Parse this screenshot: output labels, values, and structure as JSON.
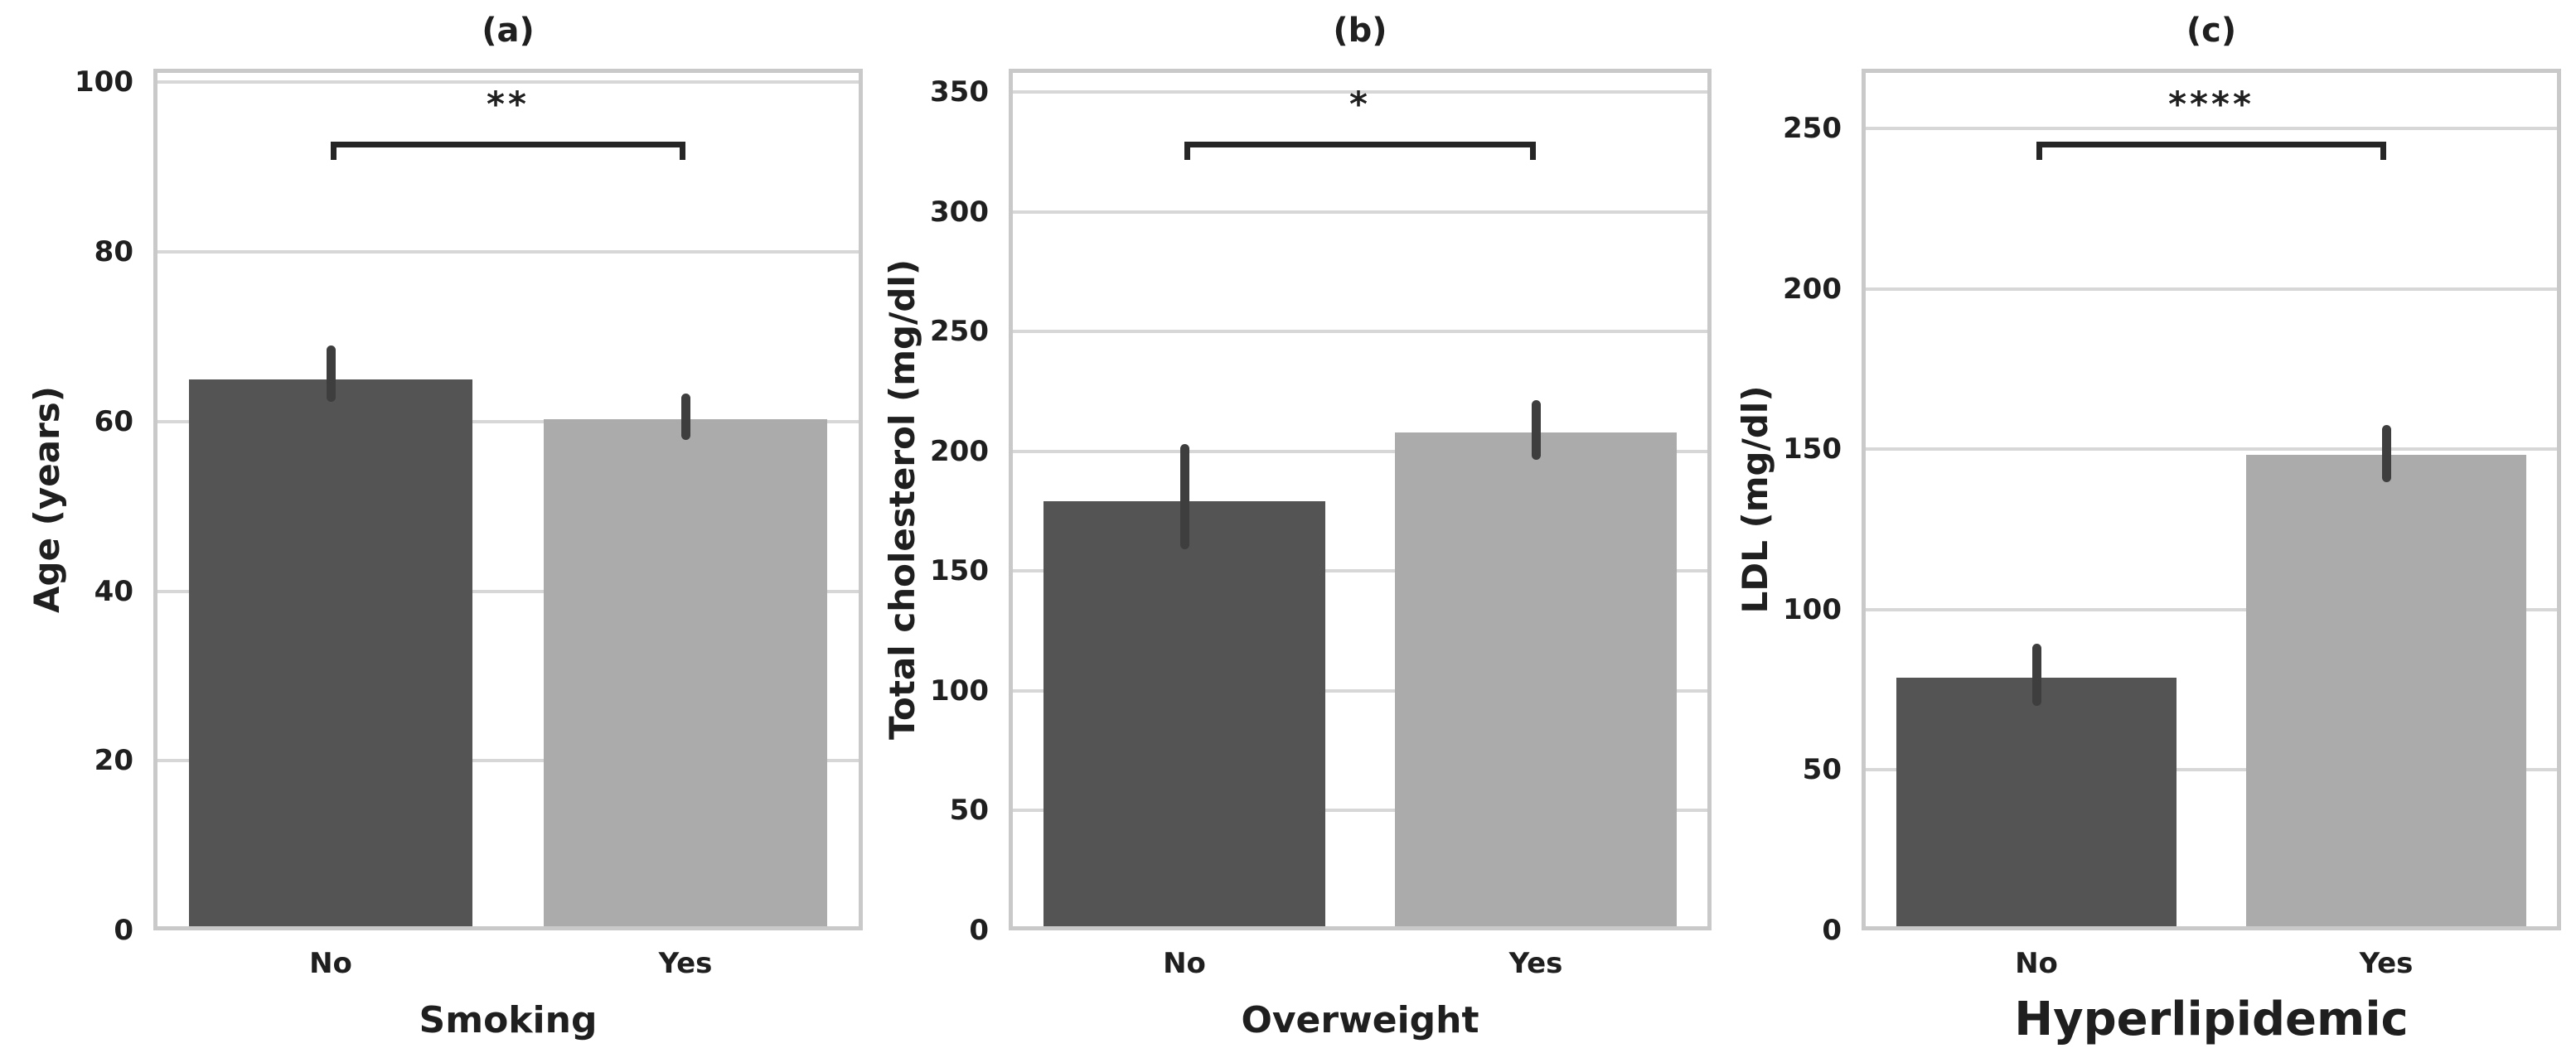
{
  "figure": {
    "background": "#ffffff",
    "text_color": "#1f1f1f"
  },
  "style_colors": {
    "bar_dark": "#545454",
    "bar_light": "#ababab",
    "error_bar": "#3e3e3e",
    "bracket": "#262626",
    "gridline": "#d7d7d7",
    "spine": "#c9c9c9"
  },
  "chart_data": [
    {
      "type": "bar",
      "title": "(a)",
      "xlabel": "Smoking",
      "ylabel": "Age (years)",
      "categories": [
        "No",
        "Yes"
      ],
      "values": [
        65.0,
        60.3
      ],
      "error_bars": [
        [
          62.3,
          69.0
        ],
        [
          57.8,
          63.3
        ]
      ],
      "bar_colors": [
        "#545454",
        "#ababab"
      ],
      "yticks": [
        0,
        20,
        40,
        60,
        80,
        100
      ],
      "ylim": [
        0,
        101.6
      ],
      "grid": "horizontal",
      "legend": "none",
      "significance": {
        "label": "**",
        "between": [
          "No",
          "Yes"
        ]
      }
    },
    {
      "type": "bar",
      "title": "(b)",
      "xlabel": "Overweight",
      "ylabel": "Total cholesterol (mg/dl)",
      "categories": [
        "No",
        "Yes"
      ],
      "values": [
        179.0,
        208.0
      ],
      "error_bars": [
        [
          159.0,
          203.0
        ],
        [
          196.5,
          221.5
        ]
      ],
      "bar_colors": [
        "#545454",
        "#ababab"
      ],
      "yticks": [
        0,
        50,
        100,
        150,
        200,
        250,
        300,
        350
      ],
      "ylim": [
        0,
        359.7
      ],
      "grid": "horizontal",
      "legend": "none",
      "significance": {
        "label": "*",
        "between": [
          "No",
          "Yes"
        ]
      }
    },
    {
      "type": "bar",
      "title": "(c)",
      "xlabel": "Hyperlipidemic",
      "ylabel": "LDL (mg/dl)",
      "categories": [
        "No",
        "Yes"
      ],
      "values": [
        78.8,
        148.2
      ],
      "error_bars": [
        [
          70.0,
          89.4
        ],
        [
          139.7,
          157.5
        ]
      ],
      "bar_colors": [
        "#545454",
        "#ababab"
      ],
      "yticks": [
        0,
        50,
        100,
        150,
        200,
        250
      ],
      "ylim": [
        0,
        268.6
      ],
      "grid": "horizontal",
      "legend": "none",
      "significance": {
        "label": "****",
        "between": [
          "No",
          "Yes"
        ]
      }
    }
  ]
}
